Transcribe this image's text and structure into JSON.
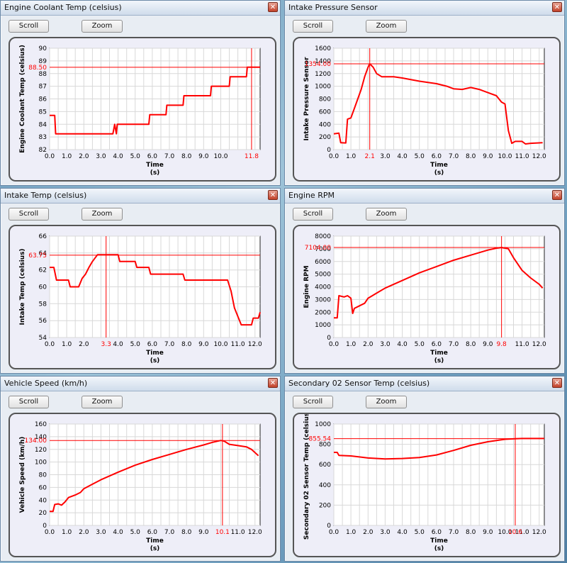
{
  "windows": [
    {
      "title": "Engine Coolant Temp (celsius)",
      "scroll_label": "Scroll",
      "zoom_label": "Zoom",
      "close_glyph": "✕",
      "chart_data": {
        "type": "line",
        "xlabel": "Time",
        "xunit": "(s)",
        "ylabel": "Engine Coolant Temp (celsius)",
        "xlim": [
          0,
          12.3
        ],
        "ylim": [
          82,
          90
        ],
        "xticks": [
          0.0,
          1.0,
          2.0,
          3.0,
          4.0,
          5.0,
          6.0,
          7.0,
          8.0,
          9.0,
          10.0
        ],
        "yticks": [
          82,
          83,
          84,
          85,
          86,
          87,
          88,
          89,
          90
        ],
        "cursor": {
          "x": 11.8,
          "y": 88.5,
          "x_label": "11.8",
          "y_label": "88.50"
        },
        "series": [
          {
            "color": "#ff0000",
            "points": [
              [
                0,
                84.7
              ],
              [
                0.3,
                84.7
              ],
              [
                0.35,
                83.25
              ],
              [
                3.7,
                83.25
              ],
              [
                3.8,
                84.0
              ],
              [
                3.9,
                83.25
              ],
              [
                3.95,
                84.0
              ],
              [
                5.8,
                84.0
              ],
              [
                5.85,
                84.75
              ],
              [
                6.8,
                84.75
              ],
              [
                6.85,
                85.5
              ],
              [
                7.8,
                85.5
              ],
              [
                7.85,
                86.25
              ],
              [
                9.4,
                86.25
              ],
              [
                9.45,
                87.0
              ],
              [
                10.5,
                87.0
              ],
              [
                10.55,
                87.75
              ],
              [
                11.5,
                87.75
              ],
              [
                11.55,
                88.5
              ],
              [
                12.3,
                88.5
              ]
            ]
          }
        ]
      }
    },
    {
      "title": "Intake Pressure Sensor",
      "scroll_label": "Scroll",
      "zoom_label": "Zoom",
      "close_glyph": "✕",
      "chart_data": {
        "type": "line",
        "xlabel": "Time",
        "xunit": "(s)",
        "ylabel": "Intake Pressure Sensor",
        "xlim": [
          0,
          12.3
        ],
        "ylim": [
          0,
          1600
        ],
        "xticks": [
          0.0,
          1.0,
          3.0,
          4.0,
          5.0,
          6.0,
          7.0,
          8.0,
          9.0,
          10.0,
          11.0,
          12.0
        ],
        "yticks": [
          0,
          200,
          400,
          600,
          800,
          1000,
          1200,
          1400,
          1600
        ],
        "cursor": {
          "x": 2.1,
          "y": 1354,
          "x_label": "2.1",
          "y_label": "1354.00"
        },
        "series": [
          {
            "color": "#ff0000",
            "points": [
              [
                0,
                250
              ],
              [
                0.3,
                260
              ],
              [
                0.4,
                110
              ],
              [
                0.7,
                105
              ],
              [
                0.8,
                480
              ],
              [
                1.0,
                500
              ],
              [
                1.2,
                650
              ],
              [
                1.4,
                800
              ],
              [
                1.6,
                950
              ],
              [
                1.8,
                1150
              ],
              [
                2.0,
                1300
              ],
              [
                2.1,
                1354
              ],
              [
                2.3,
                1300
              ],
              [
                2.5,
                1200
              ],
              [
                2.8,
                1150
              ],
              [
                3.5,
                1150
              ],
              [
                4.0,
                1130
              ],
              [
                5.0,
                1080
              ],
              [
                6.0,
                1040
              ],
              [
                6.6,
                1000
              ],
              [
                7.0,
                960
              ],
              [
                7.5,
                950
              ],
              [
                8.0,
                980
              ],
              [
                8.5,
                950
              ],
              [
                9.0,
                900
              ],
              [
                9.5,
                850
              ],
              [
                9.8,
                750
              ],
              [
                10.0,
                720
              ],
              [
                10.2,
                300
              ],
              [
                10.4,
                100
              ],
              [
                10.6,
                130
              ],
              [
                11.0,
                130
              ],
              [
                11.2,
                90
              ],
              [
                11.5,
                100
              ],
              [
                12.2,
                110
              ]
            ]
          }
        ]
      }
    },
    {
      "title": "Intake Temp (celsius)",
      "scroll_label": "Scroll",
      "zoom_label": "Zoom",
      "close_glyph": "✕",
      "chart_data": {
        "type": "line",
        "xlabel": "Time",
        "xunit": "(s)",
        "ylabel": "Intake Temp (celsius)",
        "xlim": [
          0,
          12.3
        ],
        "ylim": [
          54,
          66
        ],
        "xticks": [
          0.0,
          1.0,
          2.0,
          4.0,
          5.0,
          6.0,
          7.0,
          8.0,
          9.0,
          10.0,
          11.0,
          12.0
        ],
        "yticks": [
          54,
          56,
          58,
          60,
          62,
          64,
          66
        ],
        "cursor": {
          "x": 3.3,
          "y": 63.75,
          "x_label": "3.3",
          "y_label": "63.75"
        },
        "series": [
          {
            "color": "#ff0000",
            "points": [
              [
                0,
                62.3
              ],
              [
                0.25,
                62.3
              ],
              [
                0.4,
                60.8
              ],
              [
                1.1,
                60.8
              ],
              [
                1.2,
                60.0
              ],
              [
                1.7,
                60.0
              ],
              [
                1.9,
                61.0
              ],
              [
                2.1,
                61.5
              ],
              [
                2.3,
                62.3
              ],
              [
                2.5,
                63.0
              ],
              [
                2.8,
                63.8
              ],
              [
                4.0,
                63.8
              ],
              [
                4.1,
                63.0
              ],
              [
                5.0,
                63.0
              ],
              [
                5.1,
                62.3
              ],
              [
                5.8,
                62.3
              ],
              [
                5.9,
                61.5
              ],
              [
                7.8,
                61.5
              ],
              [
                7.9,
                60.8
              ],
              [
                10.4,
                60.8
              ],
              [
                10.6,
                59.5
              ],
              [
                10.8,
                57.5
              ],
              [
                11.0,
                56.5
              ],
              [
                11.2,
                55.5
              ],
              [
                11.8,
                55.5
              ],
              [
                11.9,
                56.3
              ],
              [
                12.2,
                56.3
              ],
              [
                12.3,
                57.0
              ]
            ]
          }
        ]
      }
    },
    {
      "title": "Engine RPM",
      "scroll_label": "Scroll",
      "zoom_label": "Zoom",
      "close_glyph": "✕",
      "chart_data": {
        "type": "line",
        "xlabel": "Time",
        "xunit": "(s)",
        "ylabel": "Engine RPM",
        "xlim": [
          0,
          12.3
        ],
        "ylim": [
          0,
          8000
        ],
        "xticks": [
          0.0,
          1.0,
          2.0,
          3.0,
          4.0,
          5.0,
          6.0,
          7.0,
          8.0,
          9.0,
          11.0,
          12.0
        ],
        "yticks": [
          0,
          1000,
          2000,
          3000,
          4000,
          5000,
          6000,
          7000,
          8000
        ],
        "cursor": {
          "x": 9.8,
          "y": 7104,
          "x_label": "9.8",
          "y_label": "7104.00"
        },
        "series": [
          {
            "color": "#ff0000",
            "points": [
              [
                0,
                1550
              ],
              [
                0.2,
                1550
              ],
              [
                0.3,
                3300
              ],
              [
                0.6,
                3200
              ],
              [
                0.8,
                3300
              ],
              [
                1.0,
                3100
              ],
              [
                1.1,
                1900
              ],
              [
                1.2,
                2300
              ],
              [
                1.5,
                2500
              ],
              [
                1.8,
                2700
              ],
              [
                2.0,
                3100
              ],
              [
                2.5,
                3500
              ],
              [
                3.0,
                3900
              ],
              [
                4.0,
                4500
              ],
              [
                5.0,
                5100
              ],
              [
                6.0,
                5600
              ],
              [
                7.0,
                6100
              ],
              [
                8.0,
                6500
              ],
              [
                9.0,
                6900
              ],
              [
                9.5,
                7050
              ],
              [
                9.8,
                7104
              ],
              [
                10.2,
                7000
              ],
              [
                10.5,
                6300
              ],
              [
                11.0,
                5300
              ],
              [
                11.5,
                4700
              ],
              [
                12.0,
                4200
              ],
              [
                12.2,
                3900
              ]
            ]
          }
        ]
      }
    },
    {
      "title": "Vehicle Speed (km/h)",
      "scroll_label": "Scroll",
      "zoom_label": "Zoom",
      "close_glyph": "✕",
      "chart_data": {
        "type": "line",
        "xlabel": "Time",
        "xunit": "(s)",
        "ylabel": "Vehicle Speed (km/h)",
        "xlim": [
          0,
          12.3
        ],
        "ylim": [
          0,
          160
        ],
        "xticks": [
          0.0,
          1.0,
          2.0,
          3.0,
          4.0,
          5.0,
          6.0,
          7.0,
          8.0,
          9.0,
          11.0,
          12.0
        ],
        "yticks": [
          0,
          20,
          40,
          60,
          80,
          100,
          120,
          140,
          160
        ],
        "cursor": {
          "x": 10.1,
          "y": 134,
          "x_label": "10.1",
          "y_label": "134.00"
        },
        "series": [
          {
            "color": "#ff0000",
            "points": [
              [
                0,
                22
              ],
              [
                0.2,
                22
              ],
              [
                0.3,
                33
              ],
              [
                0.5,
                34
              ],
              [
                0.7,
                32
              ],
              [
                0.9,
                37
              ],
              [
                1.1,
                44
              ],
              [
                1.5,
                48
              ],
              [
                1.8,
                52
              ],
              [
                2.0,
                58
              ],
              [
                3.0,
                72
              ],
              [
                4.0,
                84
              ],
              [
                5.0,
                95
              ],
              [
                6.0,
                104
              ],
              [
                7.0,
                112
              ],
              [
                8.0,
                120
              ],
              [
                9.0,
                127
              ],
              [
                9.5,
                131
              ],
              [
                10.0,
                134
              ],
              [
                10.2,
                133
              ],
              [
                10.5,
                128
              ],
              [
                11.0,
                126
              ],
              [
                11.5,
                124
              ],
              [
                11.8,
                120
              ],
              [
                12.2,
                110
              ]
            ]
          }
        ]
      }
    },
    {
      "title": "Secondary 02 Sensor Temp (celsius)",
      "scroll_label": "Scroll",
      "zoom_label": "Zoom",
      "close_glyph": "✕",
      "chart_data": {
        "type": "line",
        "xlabel": "Time",
        "xunit": "(s)",
        "ylabel": "Secondary 02 Sensor Temp (celsius)",
        "xlim": [
          0,
          12.3
        ],
        "ylim": [
          0,
          1000
        ],
        "xticks": [
          0.0,
          1.0,
          2.0,
          3.0,
          4.0,
          5.0,
          6.0,
          7.0,
          8.0,
          9.0,
          10.0,
          11.0,
          12.0
        ],
        "yticks": [
          0,
          200,
          400,
          600,
          800,
          1000
        ],
        "cursor": {
          "x": 10.6,
          "y": 855.54,
          "x_label": "10.6",
          "y_label": "855.54"
        },
        "series": [
          {
            "color": "#ff0000",
            "points": [
              [
                0,
                720
              ],
              [
                0.2,
                720
              ],
              [
                0.3,
                690
              ],
              [
                1.0,
                685
              ],
              [
                2.0,
                665
              ],
              [
                3.0,
                655
              ],
              [
                4.0,
                660
              ],
              [
                5.0,
                670
              ],
              [
                6.0,
                695
              ],
              [
                7.0,
                740
              ],
              [
                8.0,
                790
              ],
              [
                9.0,
                825
              ],
              [
                10.0,
                850
              ],
              [
                10.6,
                855.5
              ],
              [
                11.0,
                857
              ],
              [
                12.3,
                857
              ]
            ]
          }
        ]
      }
    }
  ]
}
